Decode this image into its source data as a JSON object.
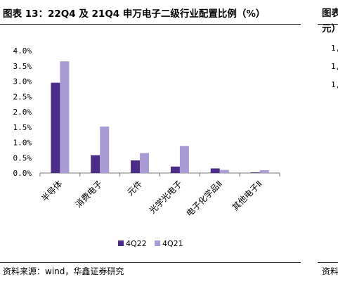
{
  "header": {
    "title": "图表 13：22Q4 及 21Q4 申万电子二级行业配置比例（%）",
    "right_title": "图表\n元）"
  },
  "right_panel": {
    "tick_labels": [
      "1,",
      "1,",
      "1,"
    ]
  },
  "footer": {
    "source": "资料来源：wind，华鑫证券研究",
    "right_source": "资料"
  },
  "colors": {
    "series_4q22": "#4b2c86",
    "series_4q21": "#a99bd3",
    "axis": "#777777"
  },
  "chart_data": {
    "type": "bar",
    "title": "",
    "xlabel": "",
    "ylabel": "",
    "ylim": [
      0,
      4.0
    ],
    "yticks": [
      "4.0%",
      "3.5%",
      "3.0%",
      "2.5%",
      "2.0%",
      "1.5%",
      "1.0%",
      "0.5%",
      "0.0%"
    ],
    "ytick_values": [
      4.0,
      3.5,
      3.0,
      2.5,
      2.0,
      1.5,
      1.0,
      0.5,
      0.0
    ],
    "categories": [
      "半导体",
      "消费电子",
      "元件",
      "光学光电子",
      "电子化学品Ⅱ",
      "其他电子Ⅱ"
    ],
    "series": [
      {
        "name": "4Q22",
        "values": [
          2.95,
          0.58,
          0.41,
          0.21,
          0.15,
          0.02
        ]
      },
      {
        "name": "4Q21",
        "values": [
          3.65,
          1.52,
          0.65,
          0.88,
          0.1,
          0.09
        ]
      }
    ],
    "grid": false,
    "legend": "bottom-center"
  }
}
